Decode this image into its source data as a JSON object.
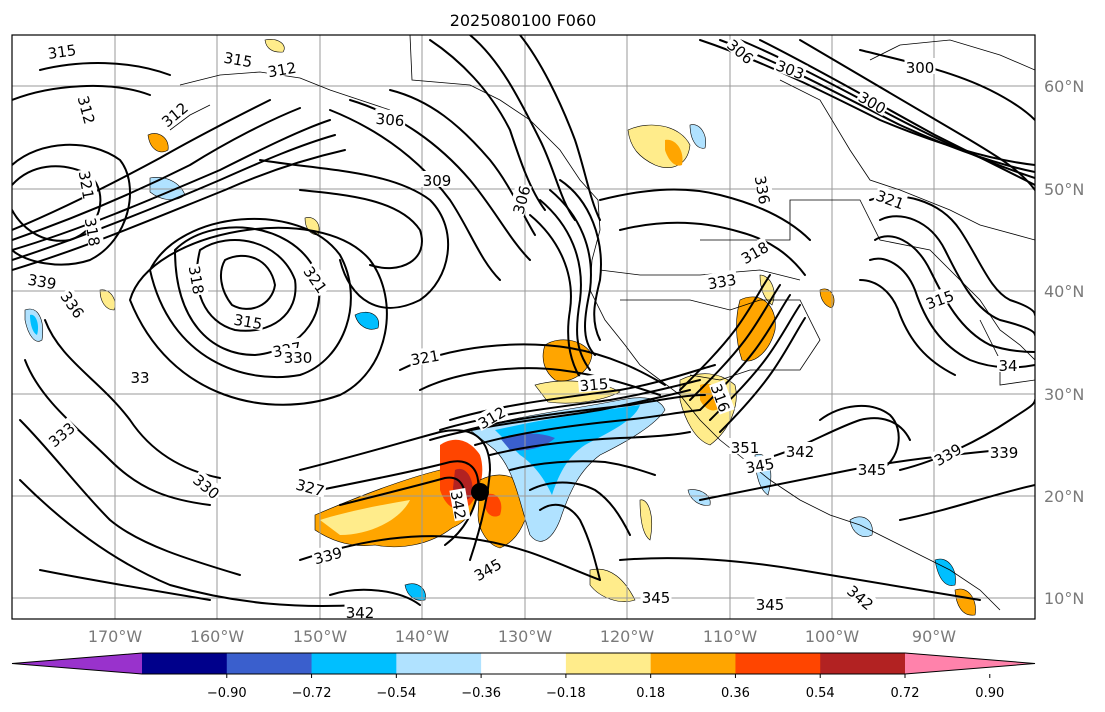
{
  "title": "2025080100 F060",
  "lon_ticks": [
    "170°W",
    "160°W",
    "150°W",
    "140°W",
    "130°W",
    "120°W",
    "110°W",
    "100°W",
    "90°W"
  ],
  "lat_ticks": [
    "60°N",
    "50°N",
    "40°N",
    "30°N",
    "20°N",
    "10°N"
  ],
  "colorbar": {
    "tick_labels": [
      "−0.90",
      "−0.72",
      "−0.54",
      "−0.36",
      "−0.18",
      "0.18",
      "0.36",
      "0.54",
      "0.72",
      "0.90"
    ],
    "colors": [
      "#9932cc",
      "#00008b",
      "#3a5fcd",
      "#00bfff",
      "#b0e2ff",
      "#ffffff",
      "#ffec8b",
      "#ffa500",
      "#ff4500",
      "#b22222",
      "#ff82ab"
    ]
  },
  "contour_labels": [
    "315",
    "315",
    "312",
    "312",
    "312",
    "306",
    "309",
    "306",
    "306",
    "303",
    "300",
    "300",
    "321",
    "318",
    "339",
    "336",
    "318",
    "321",
    "315",
    "327",
    "330",
    "33",
    "333",
    "330",
    "327",
    "342",
    "312",
    "315",
    "321",
    "336",
    "333",
    "321",
    "315",
    "316",
    "318",
    "351",
    "345",
    "342",
    "345",
    "339",
    "339",
    "339",
    "345",
    "345",
    "345",
    "342",
    "342",
    "34"
  ],
  "marker": "storm-center"
}
